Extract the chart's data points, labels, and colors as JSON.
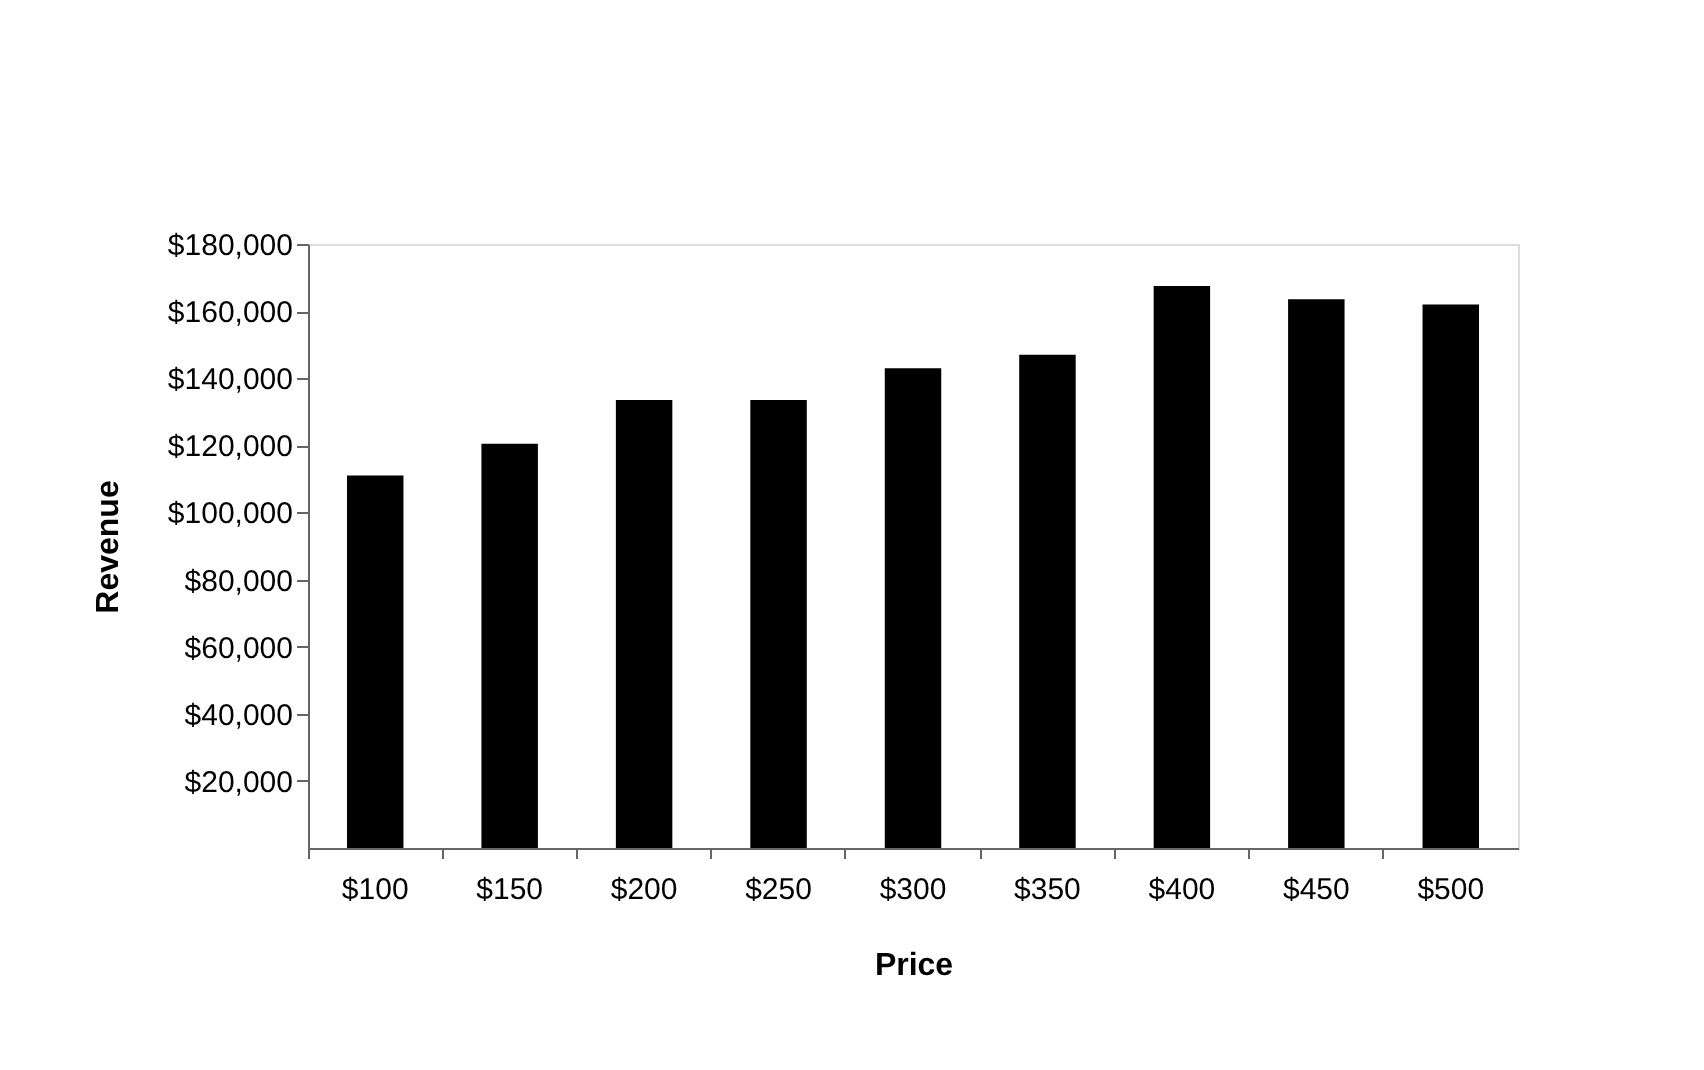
{
  "chart_data": {
    "type": "bar",
    "xlabel": "Price",
    "ylabel": "Revenue",
    "categories": [
      "$100",
      "$150",
      "$200",
      "$250",
      "$300",
      "$350",
      "$400",
      "$450",
      "$500"
    ],
    "values": [
      111000,
      120500,
      133500,
      133500,
      143000,
      147000,
      167500,
      163500,
      162000
    ],
    "color": "#000000",
    "ylim": [
      0,
      180000
    ],
    "yticks": [
      {
        "value": 20000,
        "label": "$20,000"
      },
      {
        "value": 40000,
        "label": "$40,000"
      },
      {
        "value": 60000,
        "label": "$60,000"
      },
      {
        "value": 80000,
        "label": "$80,000"
      },
      {
        "value": 100000,
        "label": "$100,000"
      },
      {
        "value": 120000,
        "label": "$120,000"
      },
      {
        "value": 140000,
        "label": "$140,000"
      },
      {
        "value": 160000,
        "label": "$160,000"
      },
      {
        "value": 180000,
        "label": "$180,000"
      }
    ],
    "grid": false
  }
}
